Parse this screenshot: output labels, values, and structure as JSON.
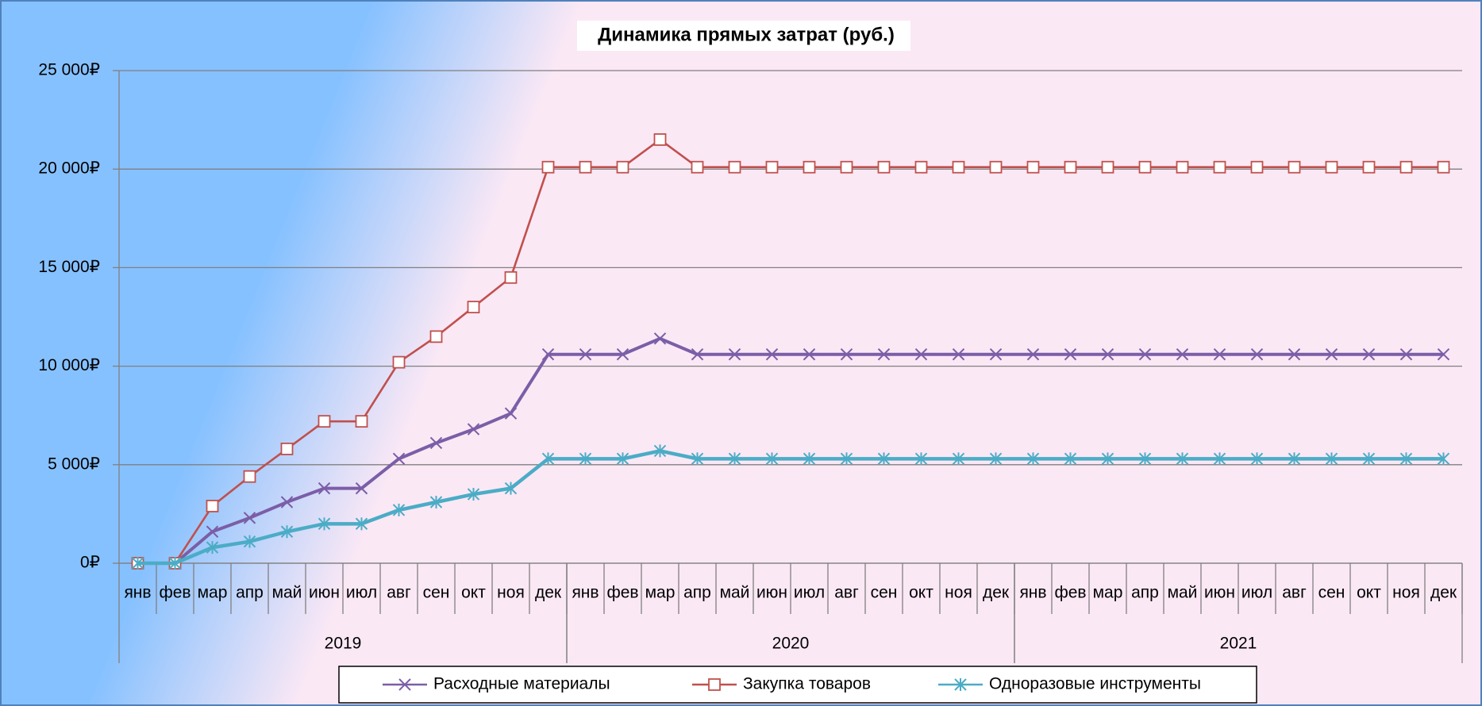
{
  "chart_data": {
    "type": "line",
    "title": "Динамика прямых затрат (руб.)",
    "categories": [
      "янв",
      "фев",
      "мар",
      "апр",
      "май",
      "июн",
      "июл",
      "авг",
      "сен",
      "окт",
      "ноя",
      "дек",
      "янв",
      "фев",
      "мар",
      "апр",
      "май",
      "июн",
      "июл",
      "авг",
      "сен",
      "окт",
      "ноя",
      "дек",
      "янв",
      "фев",
      "мар",
      "апр",
      "май",
      "июн",
      "июл",
      "авг",
      "сен",
      "окт",
      "ноя",
      "дек"
    ],
    "category_groups": [
      "2019",
      "2020",
      "2021"
    ],
    "series": [
      {
        "name": "Расходные материалы",
        "color": "#7b5ea7",
        "marker": "x",
        "values": [
          0,
          0,
          1600,
          2300,
          3100,
          3800,
          3800,
          5300,
          6100,
          6800,
          7600,
          10600,
          10600,
          10600,
          11400,
          10600,
          10600,
          10600,
          10600,
          10600,
          10600,
          10600,
          10600,
          10600,
          10600,
          10600,
          10600,
          10600,
          10600,
          10600,
          10600,
          10600,
          10600,
          10600,
          10600,
          10600
        ]
      },
      {
        "name": "Закупка товаров",
        "color": "#c0504d",
        "marker": "square",
        "values": [
          0,
          0,
          2900,
          4400,
          5800,
          7200,
          7200,
          10200,
          11500,
          13000,
          14500,
          20100,
          20100,
          20100,
          21500,
          20100,
          20100,
          20100,
          20100,
          20100,
          20100,
          20100,
          20100,
          20100,
          20100,
          20100,
          20100,
          20100,
          20100,
          20100,
          20100,
          20100,
          20100,
          20100,
          20100,
          20100
        ]
      },
      {
        "name": "Одноразовые инструменты",
        "color": "#4bacc6",
        "marker": "star",
        "values": [
          0,
          0,
          800,
          1100,
          1600,
          2000,
          2000,
          2700,
          3100,
          3500,
          3800,
          5300,
          5300,
          5300,
          5700,
          5300,
          5300,
          5300,
          5300,
          5300,
          5300,
          5300,
          5300,
          5300,
          5300,
          5300,
          5300,
          5300,
          5300,
          5300,
          5300,
          5300,
          5300,
          5300,
          5300,
          5300
        ]
      }
    ],
    "ylim": [
      0,
      25000
    ],
    "yticks": [
      {
        "value": 0,
        "label": "0₽"
      },
      {
        "value": 5000,
        "label": "5 000₽"
      },
      {
        "value": 10000,
        "label": "10 000₽"
      },
      {
        "value": 15000,
        "label": "15 000₽"
      },
      {
        "value": 20000,
        "label": "20 000₽"
      },
      {
        "value": 25000,
        "label": "25 000₽"
      }
    ],
    "grid": true,
    "legend": "bottom"
  }
}
